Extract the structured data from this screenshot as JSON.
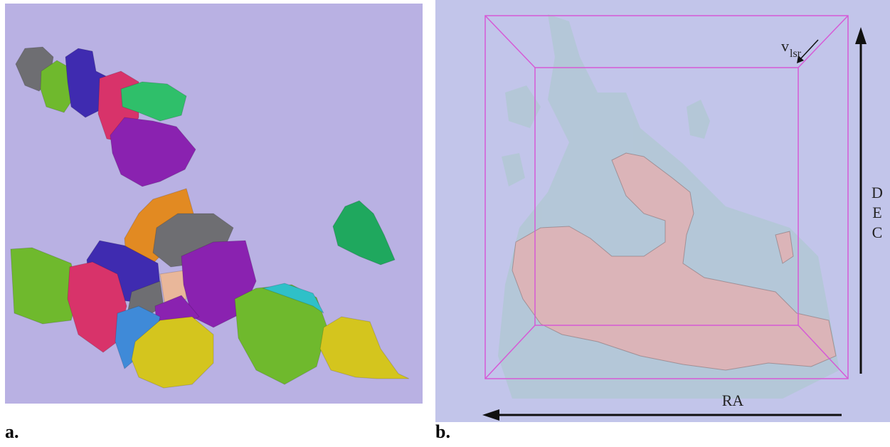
{
  "panels": [
    {
      "label": "a."
    },
    {
      "label": "b.",
      "velocity_label": {
        "symbol": "v",
        "subscript": "lsr"
      },
      "vertical_axis_label": [
        "D",
        "E",
        "C"
      ],
      "horizontal_axis_label": "RA"
    }
  ]
}
